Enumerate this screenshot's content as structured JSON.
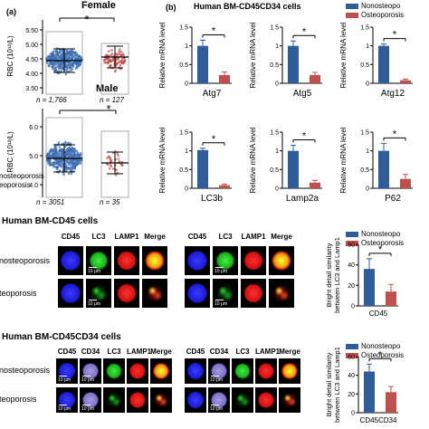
{
  "panel_a": {
    "label": "(a)",
    "female": {
      "title": "Female",
      "sig": "*",
      "ylabel": "RBC (10¹²/L)",
      "yticks": [
        "5.50",
        "5.00",
        "4.50",
        "4.00",
        "3.50"
      ],
      "n_left": "n = 1,766",
      "n_right": "n = 127"
    },
    "male": {
      "title": "Male",
      "sig": "*",
      "ylabel": "RBC (10¹²/L)",
      "yticks": [
        "6.0",
        "5.0",
        "4.0"
      ],
      "n_left": "n = 3051",
      "n_right": "n = 35"
    },
    "legend_cut_1": "nosteoporosis",
    "legend_cut_2": "eoporosis"
  },
  "panel_b": {
    "label": "(b)",
    "title": "Human BM-CD45CD34 cells",
    "legend": {
      "items": [
        {
          "label": "Nonosteopo",
          "color": "#2e5d9a"
        },
        {
          "label": "Osteoporosis",
          "color": "#c0504d"
        }
      ]
    },
    "ylabel": "Relative mRNA level"
  },
  "chart_data": [
    {
      "type": "bar",
      "title": "Atg7",
      "categories": [
        "Nonosteoporosis",
        "Osteoporosis"
      ],
      "values": [
        1.0,
        0.22
      ],
      "ylim": [
        0,
        1.5
      ],
      "yticks": [
        "1.5",
        "1",
        "0.5",
        "0"
      ],
      "sig": "*"
    },
    {
      "type": "bar",
      "title": "Atg5",
      "categories": [
        "Nonosteoporosis",
        "Osteoporosis"
      ],
      "values": [
        1.0,
        0.22
      ],
      "ylim": [
        0,
        1.5
      ],
      "yticks": [
        "1.5",
        "1",
        "0.5",
        "0"
      ],
      "sig": "*"
    },
    {
      "type": "bar",
      "title": "Atg12",
      "categories": [
        "Nonosteoporosis",
        "Osteoporosis"
      ],
      "values": [
        1.0,
        0.08
      ],
      "ylim": [
        0,
        1.5
      ],
      "yticks": [
        "1.5",
        "1",
        "0.5",
        "0"
      ],
      "sig": "*"
    },
    {
      "type": "bar",
      "title": "LC3b",
      "categories": [
        "Nonosteoporosis",
        "Osteoporosis"
      ],
      "values": [
        1.02,
        0.08
      ],
      "ylim": [
        0,
        1.5
      ],
      "yticks": [
        "1.5",
        "1",
        "0.5",
        "0"
      ],
      "sig": "*"
    },
    {
      "type": "bar",
      "title": "Lamp2a",
      "categories": [
        "Nonosteoporosis",
        "Osteoporosis"
      ],
      "values": [
        1.0,
        0.15
      ],
      "ylim": [
        0,
        1.5
      ],
      "yticks": [
        "1.5",
        "1",
        "0.5",
        "0"
      ],
      "sig": "*"
    },
    {
      "type": "bar",
      "title": "P62",
      "categories": [
        "Nonosteoporosis",
        "Osteoporosis"
      ],
      "values": [
        1.0,
        0.25
      ],
      "ylim": [
        0,
        1.5
      ],
      "yticks": [
        "1.5",
        "1",
        "0.5",
        "0"
      ],
      "sig": "*"
    },
    {
      "type": "bar",
      "title": "CD45",
      "xlabel": "CD45",
      "ylabel": "Bright detail similarity between LC3 and Lamp1",
      "categories": [
        "Nonosteoporosis",
        "Osteoporosis"
      ],
      "values": [
        36,
        14
      ],
      "ylim": [
        0,
        60
      ],
      "yticks": [
        "60",
        "40",
        "20",
        "0"
      ],
      "sig": "*"
    },
    {
      "type": "bar",
      "title": "CD45CD34",
      "xlabel": "CD45CD34",
      "ylabel": "Bright detail similarity between LC3 and Lamp1",
      "categories": [
        "Nonosteoporosis",
        "Osteoporosis"
      ],
      "values": [
        44,
        22
      ],
      "ylim": [
        0,
        60
      ],
      "yticks": [
        "60",
        "40",
        "20",
        "0"
      ],
      "sig": "*"
    }
  ],
  "imaging_cd45": {
    "title": "Human BM-CD45 cells",
    "headers": [
      "CD45",
      "LC3",
      "LAMP1",
      "Merge",
      "CD45",
      "LC3",
      "LAMP1",
      "Merge"
    ],
    "row1": "nosteoporosis",
    "row2": "teoporosis",
    "scalebar": "10 μm",
    "legend": [
      {
        "label": "Nonosteopo",
        "color": "#2e5d9a"
      },
      {
        "label": "Osteoporosis",
        "color": "#c0504d"
      }
    ]
  },
  "imaging_cd45cd34": {
    "title": "Human BM-CD45CD34 cells",
    "headers": [
      "CD45",
      "CD34",
      "LC3",
      "LAMP1",
      "Merge",
      "CD45",
      "CD34",
      "LC3",
      "LAMP1",
      "Merge"
    ],
    "row1": "nosteoporosis",
    "row2": "teoporosis",
    "scalebar": "10 μm",
    "legend": [
      {
        "label": "Nonosteopo",
        "color": "#2e5d9a"
      },
      {
        "label": "Osteoporosis",
        "color": "#c0504d"
      }
    ]
  },
  "colors": {
    "non": "#2e5d9a",
    "osteo": "#c0504d",
    "box_fill": "#3f6fb0",
    "pts_osteo": "#c0504d"
  }
}
